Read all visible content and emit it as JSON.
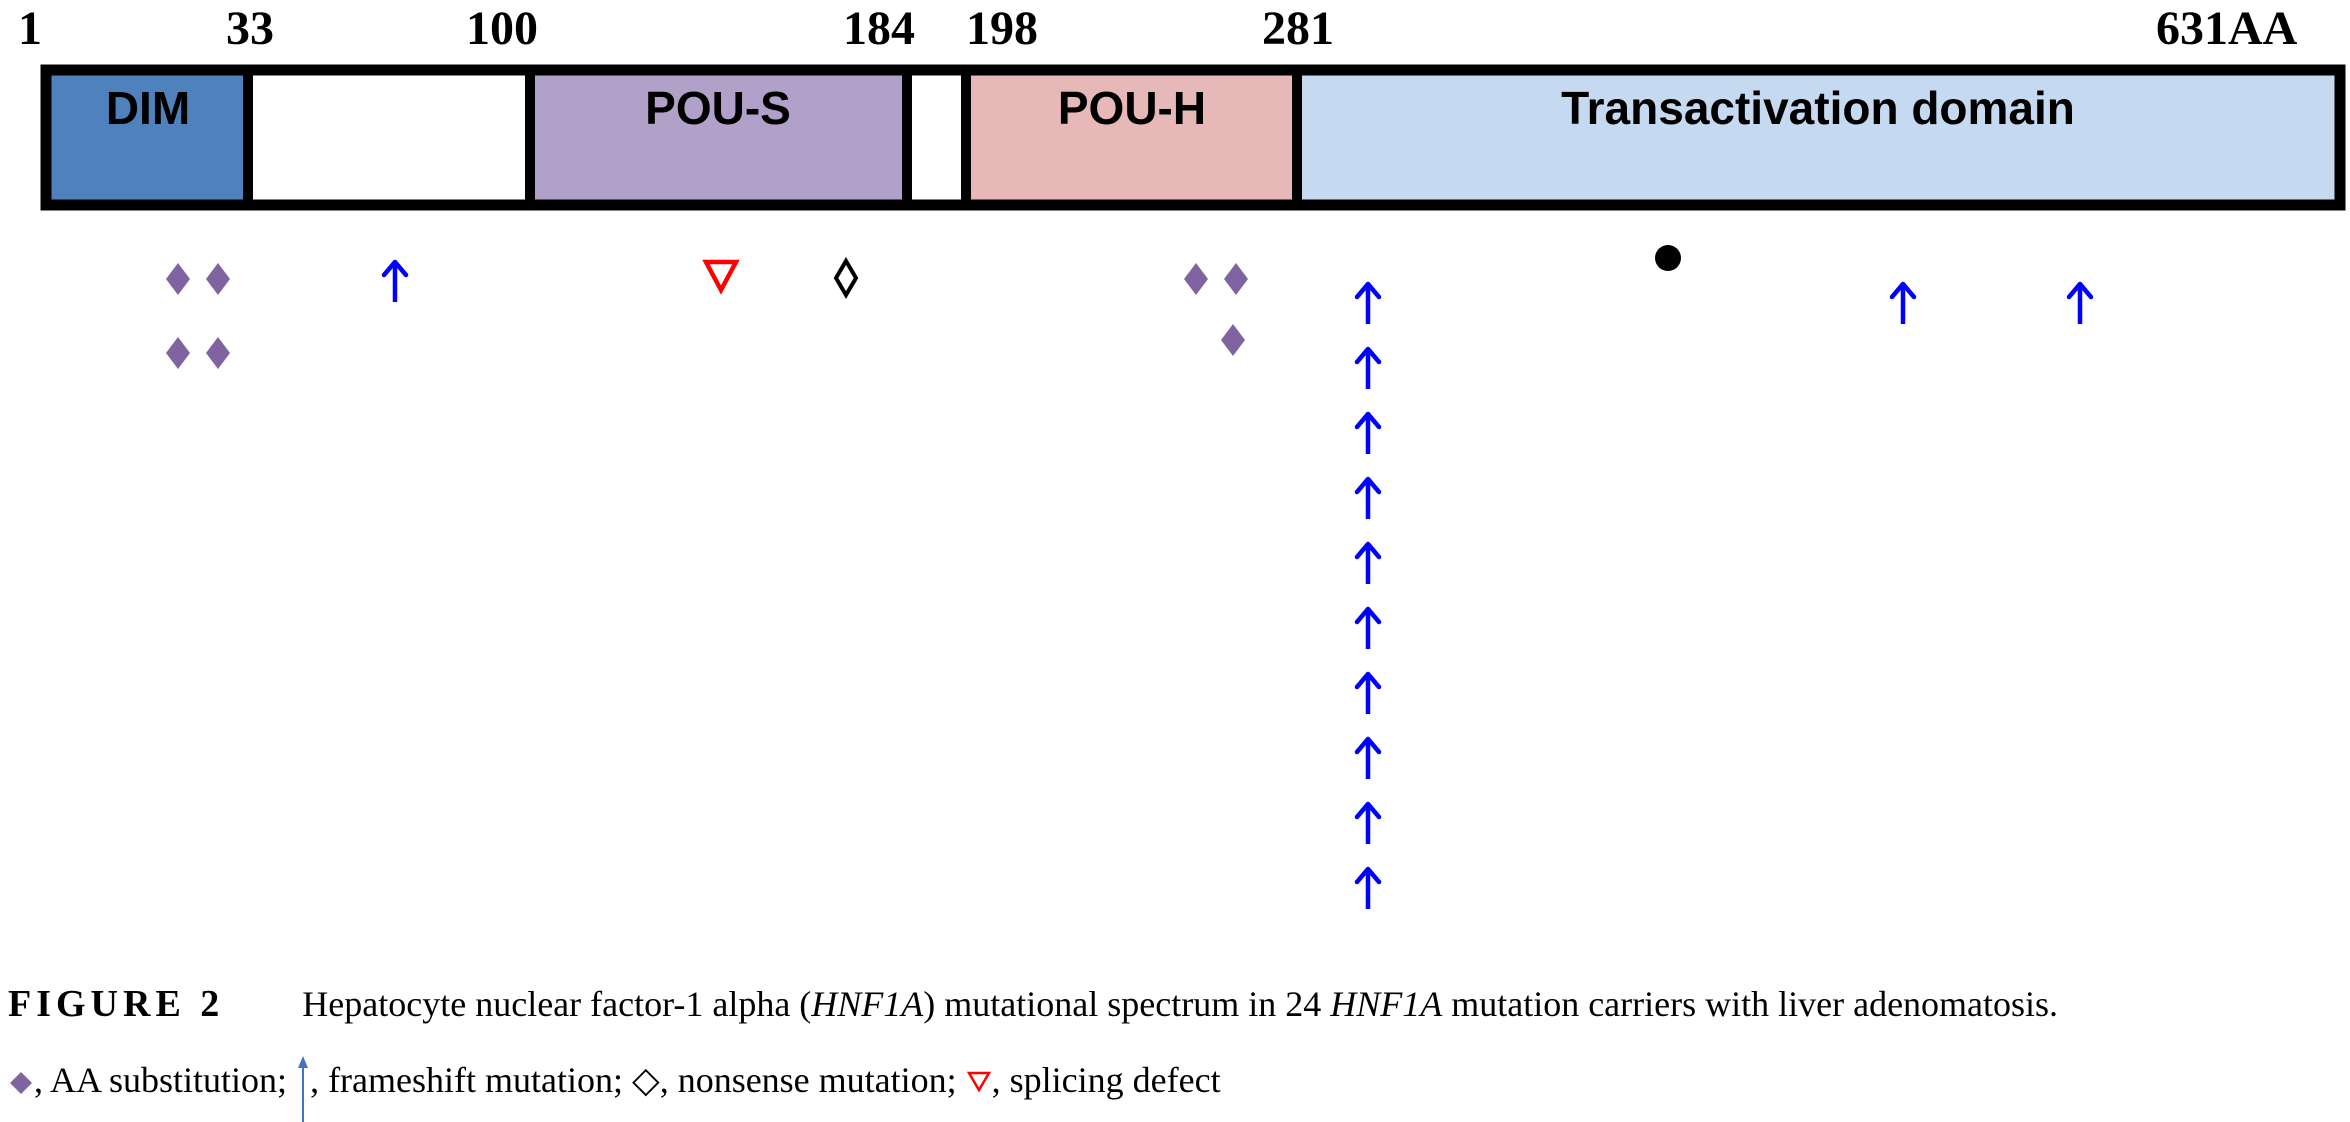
{
  "protein": {
    "start_label": "1",
    "end_label": "631AA",
    "length_aa": 631
  },
  "domains": [
    {
      "label": "DIM",
      "start": 1,
      "end": 33,
      "color": "#4f81bd"
    },
    {
      "label": "",
      "start": 33,
      "end": 100,
      "color": "#ffffff"
    },
    {
      "label": "POU-S",
      "start": 100,
      "end": 184,
      "color": "#b1a0c7"
    },
    {
      "label": "",
      "start": 184,
      "end": 198,
      "color": "#ffffff"
    },
    {
      "label": "POU-H",
      "start": 198,
      "end": 281,
      "color": "#e6b8b7"
    },
    {
      "label": "Transactivation domain",
      "start": 281,
      "end": 631,
      "color": "#c5d9f1"
    }
  ],
  "boundary_labels": [
    "1",
    "33",
    "100",
    "184",
    "198",
    "281",
    "631AA"
  ],
  "mutations": [
    {
      "type": "aa_substitution",
      "count": 4
    },
    {
      "type": "frameshift",
      "count": 1
    },
    {
      "type": "splicing_defect",
      "count": 1
    },
    {
      "type": "nonsense",
      "count": 1
    },
    {
      "type": "aa_substitution",
      "count": 3
    },
    {
      "type": "frameshift",
      "count": 10
    },
    {
      "type": "other",
      "count": 1
    },
    {
      "type": "frameshift",
      "count": 1
    },
    {
      "type": "frameshift",
      "count": 1
    }
  ],
  "colors": {
    "aa_substitution": "#8064a2",
    "frameshift": "#0000ff",
    "nonsense": "#000000",
    "splicing_defect": "#ff0000",
    "other": "#000000"
  },
  "caption": {
    "figure_label": "FIGURE 2",
    "text_1": "Hepatocyte nuclear factor-1 alpha (",
    "gene_1": "HNF1A",
    "text_2": ") mutational spectrum in 24 ",
    "gene_2": "HNF1A",
    "text_3": " mutation carriers with liver adenomatosis."
  },
  "legend": {
    "aa_substitution": ", AA substitution; ",
    "frameshift": ", frameshift mutation; ",
    "nonsense": ", nonsense mutation; ",
    "splicing_defect": ", splicing defect"
  }
}
